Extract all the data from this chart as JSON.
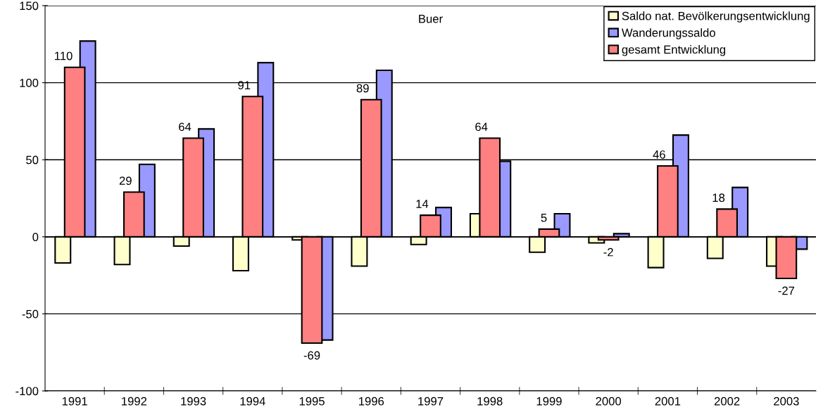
{
  "chart_data": {
    "type": "bar",
    "title": "Buer",
    "categories": [
      "1991",
      "1992",
      "1993",
      "1994",
      "1995",
      "1996",
      "1997",
      "1998",
      "1999",
      "2000",
      "2001",
      "2002",
      "2003"
    ],
    "series": [
      {
        "name": "Saldo nat. Bevölkerungsentwicklung",
        "color": "#ffffcc",
        "values": [
          -17,
          -18,
          -6,
          -22,
          -2,
          -19,
          -5,
          15,
          -10,
          -4,
          -20,
          -14,
          -19
        ]
      },
      {
        "name": "Wanderungssaldo",
        "color": "#9999ff",
        "values": [
          127,
          47,
          70,
          113,
          -67,
          108,
          19,
          49,
          15,
          2,
          66,
          32,
          -8
        ]
      },
      {
        "name": "gesamt Entwicklung",
        "color": "#ff8080",
        "values": [
          110,
          29,
          64,
          91,
          -69,
          89,
          14,
          64,
          5,
          -2,
          46,
          18,
          -27
        ],
        "value_labels": [
          "110",
          "29",
          "64",
          "91",
          "-69",
          "89",
          "14",
          "64",
          "5",
          "-2",
          "46",
          "18",
          "-27"
        ]
      }
    ],
    "ylim": [
      -100,
      150
    ],
    "yticks": [
      -100,
      -50,
      0,
      50,
      100,
      150
    ],
    "grid": "y",
    "legend": "top right"
  }
}
